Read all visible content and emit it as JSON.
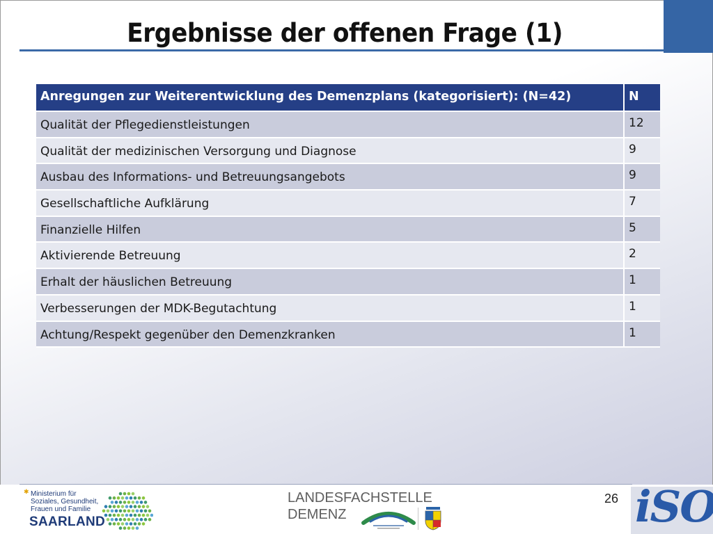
{
  "slide": {
    "title": "Ergebnisse der offenen Frage (1)",
    "page_number": "26"
  },
  "table": {
    "header": {
      "label": "Anregungen zur Weiterentwicklung des Demenzplans (kategorisiert): (N=42)",
      "n": "N"
    },
    "rows": [
      {
        "label": "Qualität der Pflegedienstleistungen",
        "n": "12"
      },
      {
        "label": "Qualität der medizinischen Versorgung und Diagnose",
        "n": "9"
      },
      {
        "label": "Ausbau des Informations- und Betreuungsangebots",
        "n": "9"
      },
      {
        "label": "Gesellschaftliche Aufklärung",
        "n": "7"
      },
      {
        "label": "Finanzielle Hilfen",
        "n": "5"
      },
      {
        "label": "Aktivierende Betreuung",
        "n": "2"
      },
      {
        "label": "Erhalt der häuslichen Betreuung",
        "n": "1"
      },
      {
        "label": "Verbesserungen der MDK-Begutachtung",
        "n": "1"
      },
      {
        "label": "Achtung/Respekt gegenüber den Demenzkranken",
        "n": "1"
      }
    ]
  },
  "footer": {
    "ministry_lines": [
      "Ministerium für",
      "Soziales, Gesundheit,",
      "Frauen und Familie"
    ],
    "state": "SAARLAND",
    "landes_line1": "LANDESFACHSTELLE",
    "landes_line2": "DEMENZ",
    "iso_logo": "iSO"
  },
  "colors": {
    "accent_blue": "#3565a5",
    "header_blue": "#253f86",
    "row_dark": "#c9ccdc",
    "row_light": "#e6e8f0",
    "iso_blue": "#2a5aa8"
  }
}
